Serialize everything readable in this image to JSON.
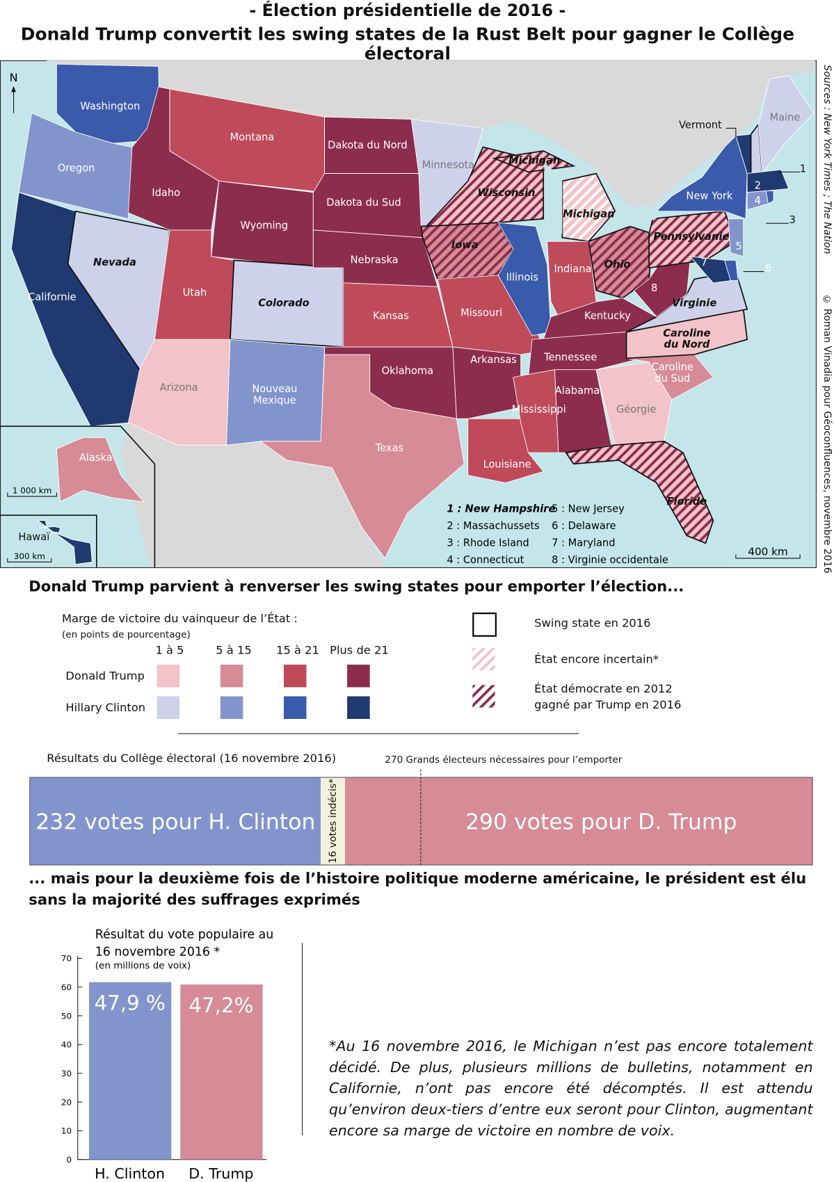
{
  "title": {
    "line1": "- Élection présidentielle de 2016 -",
    "line2": "Donald Trump convertit les swing states de la Rust Belt pour gagner le Collège électoral"
  },
  "colors": {
    "ocean": "#c4e6ea",
    "foreign_land": "#d9d9d9",
    "trump_1_5": "#f2c3c8",
    "trump_5_15": "#d68b96",
    "trump_15_21": "#bf4a5a",
    "trump_21": "#8c2d4e",
    "clinton_1_5": "#cdd1ea",
    "clinton_5_15": "#8294cc",
    "clinton_15_21": "#3a5aab",
    "clinton_21": "#1f3a70",
    "undecided": "#f3f1dc"
  },
  "map": {
    "north": "N",
    "states": [
      {
        "id": "wa",
        "label": "Washington",
        "cat": "clinton_15_21"
      },
      {
        "id": "or",
        "label": "Oregon",
        "cat": "clinton_5_15"
      },
      {
        "id": "ca",
        "label": "Californie",
        "cat": "clinton_21"
      },
      {
        "id": "nv",
        "label": "Nevada",
        "cat": "clinton_1_5",
        "swing": true
      },
      {
        "id": "id",
        "label": "Idaho",
        "cat": "trump_21"
      },
      {
        "id": "mt",
        "label": "Montana",
        "cat": "trump_15_21"
      },
      {
        "id": "wy",
        "label": "Wyoming",
        "cat": "trump_21"
      },
      {
        "id": "ut",
        "label": "Utah",
        "cat": "trump_15_21"
      },
      {
        "id": "co",
        "label": "Colorado",
        "cat": "clinton_1_5",
        "swing": true
      },
      {
        "id": "az",
        "label": "Arizona",
        "cat": "trump_1_5"
      },
      {
        "id": "nm",
        "label": "Nouveau Mexique",
        "cat": "clinton_5_15"
      },
      {
        "id": "nd",
        "label": "Dakota du Nord",
        "cat": "trump_21"
      },
      {
        "id": "sd",
        "label": "Dakota du Sud",
        "cat": "trump_21"
      },
      {
        "id": "ne",
        "label": "Nebraska",
        "cat": "trump_21"
      },
      {
        "id": "ks",
        "label": "Kansas",
        "cat": "trump_15_21"
      },
      {
        "id": "ok",
        "label": "Oklahoma",
        "cat": "trump_21"
      },
      {
        "id": "tx",
        "label": "Texas",
        "cat": "trump_5_15"
      },
      {
        "id": "mn",
        "label": "Minnesota",
        "cat": "clinton_1_5"
      },
      {
        "id": "ia",
        "label": "Iowa",
        "cat": "trump_5_15",
        "swing": true,
        "hatch": "dark"
      },
      {
        "id": "mo",
        "label": "Missouri",
        "cat": "trump_15_21"
      },
      {
        "id": "ar",
        "label": "Arkansas",
        "cat": "trump_21"
      },
      {
        "id": "la",
        "label": "Louisiane",
        "cat": "trump_15_21"
      },
      {
        "id": "wi",
        "label": "Wisconsin",
        "cat": "trump_1_5",
        "swing": true,
        "hatch": "dark"
      },
      {
        "id": "il",
        "label": "Illinois",
        "cat": "clinton_15_21"
      },
      {
        "id": "mi",
        "label": "Michigan",
        "cat": "trump_1_5",
        "swing": true,
        "hatch": "light"
      },
      {
        "id": "miu",
        "label": "Michigan",
        "cat": "trump_1_5",
        "swing": true,
        "hatch": "dark"
      },
      {
        "id": "in",
        "label": "Indiana",
        "cat": "trump_15_21"
      },
      {
        "id": "oh",
        "label": "Ohio",
        "cat": "trump_5_15",
        "swing": true,
        "hatch": "dark"
      },
      {
        "id": "ky",
        "label": "Kentucky",
        "cat": "trump_21"
      },
      {
        "id": "tn",
        "label": "Tennessee",
        "cat": "trump_21"
      },
      {
        "id": "ms",
        "label": "Mississippi",
        "cat": "trump_15_21"
      },
      {
        "id": "al",
        "label": "Alabama",
        "cat": "trump_21"
      },
      {
        "id": "ga",
        "label": "Géorgie",
        "cat": "trump_1_5"
      },
      {
        "id": "fl",
        "label": "Floride",
        "cat": "trump_1_5",
        "swing": true,
        "hatch": "dark"
      },
      {
        "id": "sc",
        "label": "Caroline du Sud",
        "cat": "trump_5_15"
      },
      {
        "id": "nc",
        "label": "Caroline du Nord",
        "cat": "trump_1_5",
        "swing": true
      },
      {
        "id": "va",
        "label": "Virginie",
        "cat": "clinton_1_5",
        "swing": true
      },
      {
        "id": "wv",
        "label": "8",
        "cat": "trump_21"
      },
      {
        "id": "pa",
        "label": "Pennsylvanie",
        "cat": "trump_1_5",
        "swing": true,
        "hatch": "dark"
      },
      {
        "id": "ny",
        "label": "New York",
        "cat": "clinton_15_21"
      },
      {
        "id": "vt",
        "label": "Vermont",
        "cat": "clinton_21"
      },
      {
        "id": "nh",
        "label": "1",
        "cat": "clinton_1_5",
        "swing": true
      },
      {
        "id": "me",
        "label": "Maine",
        "cat": "clinton_1_5"
      },
      {
        "id": "ma",
        "label": "2",
        "cat": "clinton_21"
      },
      {
        "id": "ct",
        "label": "4",
        "cat": "clinton_5_15"
      },
      {
        "id": "ri",
        "label": "3",
        "cat": "clinton_15_21"
      },
      {
        "id": "nj",
        "label": "5",
        "cat": "clinton_5_15"
      },
      {
        "id": "de",
        "label": "6",
        "cat": "clinton_15_21"
      },
      {
        "id": "md",
        "label": "7",
        "cat": "clinton_21"
      },
      {
        "id": "ak",
        "label": "Alaska",
        "cat": "trump_5_15"
      },
      {
        "id": "hi",
        "label": "Hawaï",
        "cat": "clinton_21"
      }
    ],
    "key": [
      "1 : New Hampshire",
      "2 : Massachussets",
      "3 : Rhode Island",
      "4 : Connecticut",
      "5 : New Jersey",
      "6 : Delaware",
      "7 : Maryland",
      "8 : Virginie occidentale"
    ],
    "scale_main": "400 km",
    "scale_alaska": "1 000 km",
    "scale_hawaii": "300 km",
    "source_left": "Sources : New York Times ; The Nation",
    "source_right": "© Roman Vinadia pour Géoconfluences, novembre 2016"
  },
  "legend": {
    "heading": "Donald Trump parvient à renverser les swing states pour emporter l’élection...",
    "margin_title": "Marge de victoire du vainqueur de l’État :",
    "margin_sub": "(en points de pourcentage)",
    "columns": [
      "1 à 5",
      "5 à 15",
      "15 à 21",
      "Plus de  21"
    ],
    "rows": [
      {
        "label": "Donald Trump",
        "cats": [
          "trump_1_5",
          "trump_5_15",
          "trump_15_21",
          "trump_21"
        ]
      },
      {
        "label": "Hillary Clinton",
        "cats": [
          "clinton_1_5",
          "clinton_5_15",
          "clinton_15_21",
          "clinton_21"
        ]
      }
    ],
    "swing": "Swing state en 2016",
    "uncertain": "État encore incertain*",
    "flipped_1": "État démocrate en 2012",
    "flipped_2": "gagné par Trump en 2016"
  },
  "electoral": {
    "title": "Résultats du Collège électoral (16 novembre 2016)",
    "threshold_label": "270 Grands électeurs nécessaires pour l’emporter",
    "threshold": 270,
    "total": 538,
    "clinton": 232,
    "undecided": 16,
    "trump": 290,
    "clinton_label": "232 votes pour H. Clinton",
    "undecided_label": "16 votes indécis*",
    "trump_label": "290 votes pour D. Trump"
  },
  "subheading": "... mais pour la deuxième fois de l’histoire politique moderne américaine, le président est élu sans la majorité des suffrages exprimés",
  "chart_data": {
    "type": "bar",
    "title": "Résultat du vote populaire au 16 novembre 2016 *",
    "ylabel": "(en millions de voix)",
    "categories": [
      "H. Clinton",
      "D. Trump"
    ],
    "values": [
      61.7,
      60.9
    ],
    "data_labels": [
      "47,9 %",
      "47,2%"
    ],
    "ylim": [
      0,
      70
    ],
    "yticks": [
      "0",
      "10",
      "20",
      "30",
      "40",
      "50",
      "60",
      "70"
    ]
  },
  "footnote": "*Au 16 novembre 2016, le Michigan n’est pas encore totalement décidé. De plus, plusieurs millions de bulletins, notamment en Californie, n’ont pas encore été décomptés. Il est attendu qu’environ deux-tiers d’entre eux seront pour Clinton, augmentant encore sa marge de victoire en nombre de voix."
}
